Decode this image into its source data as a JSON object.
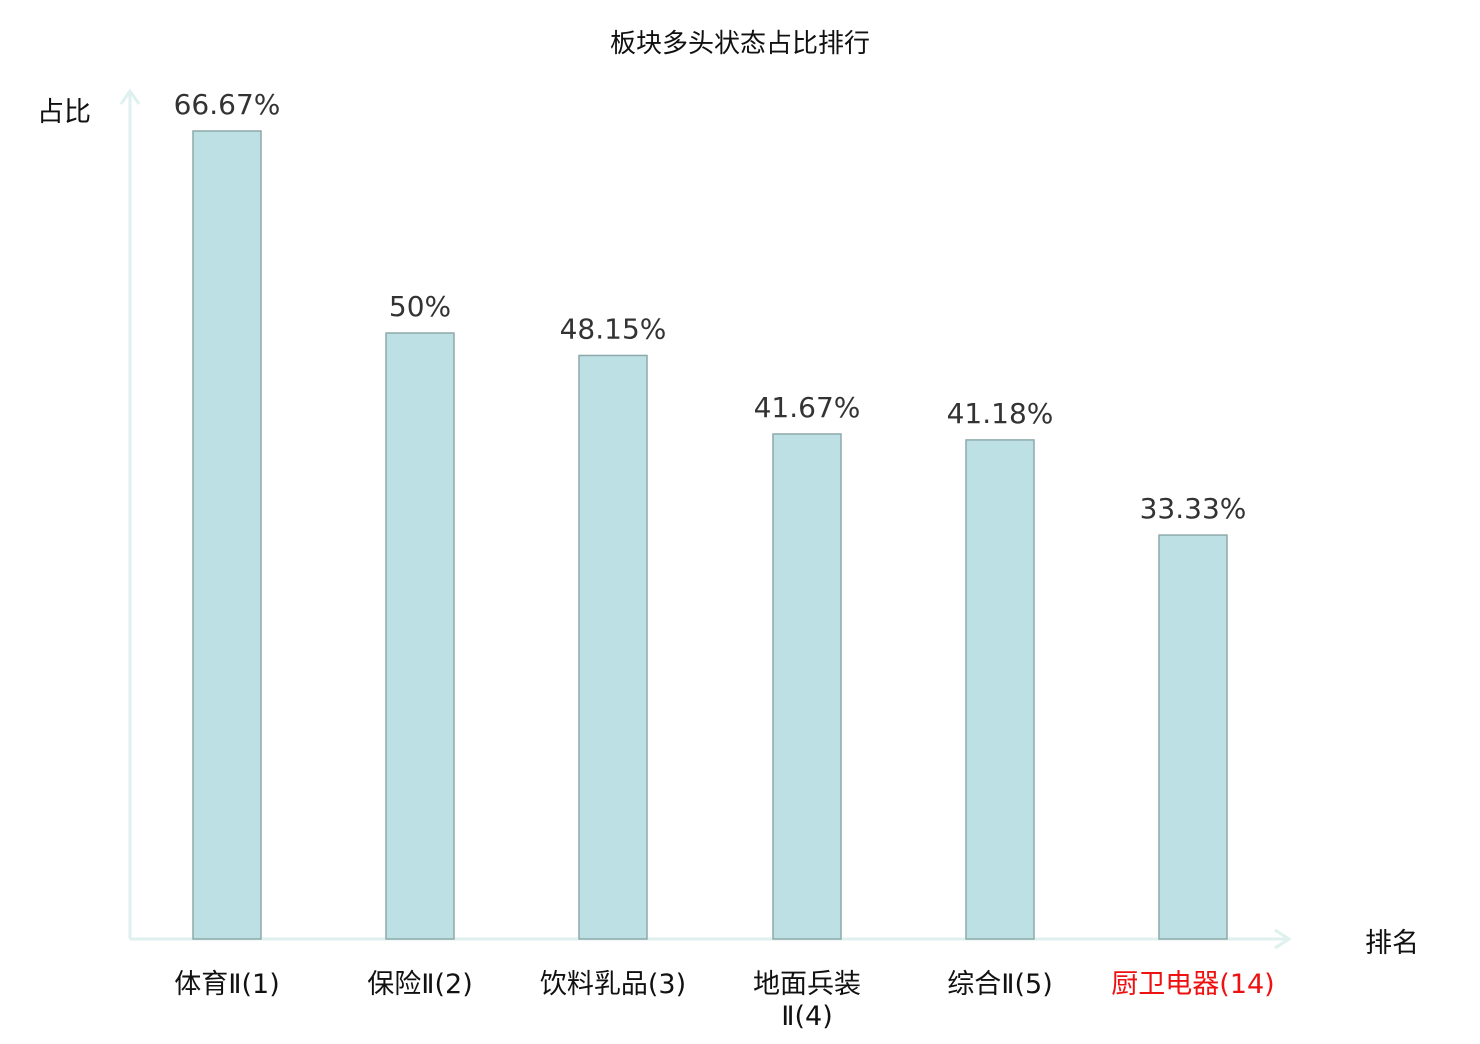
{
  "chart_data": {
    "type": "bar",
    "title": "板块多头状态占比排行",
    "ylabel": "占比",
    "xlabel": "排名",
    "categories": [
      "体育Ⅱ(1)",
      "保险Ⅱ(2)",
      "饮料乳品(3)",
      "地面兵装Ⅱ(4)",
      "综合Ⅱ(5)",
      "厨卫电器(14)"
    ],
    "category_lines": [
      [
        "体育Ⅱ(1)"
      ],
      [
        "保险Ⅱ(2)"
      ],
      [
        "饮料乳品(3)"
      ],
      [
        "地面兵装",
        "Ⅱ(4)"
      ],
      [
        "综合Ⅱ(5)"
      ],
      [
        "厨卫电器(14)"
      ]
    ],
    "highlighted_category": "厨卫电器(14)",
    "values": [
      66.67,
      50,
      48.15,
      41.67,
      41.18,
      33.33
    ],
    "data_labels": [
      "66.67%",
      "50%",
      "48.15%",
      "41.67%",
      "41.18%",
      "33.33%"
    ],
    "ylim": [
      0,
      70
    ],
    "grid": false,
    "colors": {
      "bar_fill": "#bce0e3",
      "bar_stroke": "#8ea9aa",
      "axis": "#dff1ee",
      "highlight_label": "#ee1111",
      "label": "#111111",
      "data_label": "#333333"
    }
  }
}
